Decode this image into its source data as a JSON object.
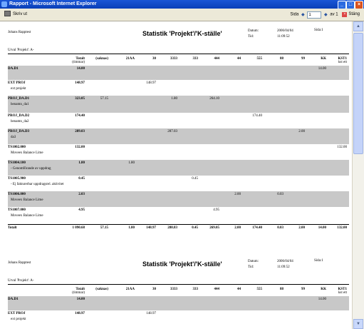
{
  "window": {
    "title": "Rapport - Microsoft Internet Explorer"
  },
  "toolbar": {
    "print_label": "Skriv ut",
    "page_label": "Sida",
    "page_value": "1",
    "page_of": "av 1",
    "close_label": "Stäng"
  },
  "report": {
    "author": "Johans Rapptest",
    "title": "Statistik 'Projekt'/'K-ställe'",
    "date_label": "Datum:",
    "date_value": "2006/04/04",
    "time_label": "Tid:",
    "time_value": "11:09:52",
    "page_info": "Sida:1",
    "selection": "Urval 'Projekt': A-",
    "columns": [
      {
        "label": "Totalt",
        "sub": "(timmar)"
      },
      {
        "label": "(saknas)",
        "sub": ""
      },
      {
        "label": "21AA",
        "sub": ""
      },
      {
        "label": "30",
        "sub": ""
      },
      {
        "label": "3333",
        "sub": ""
      },
      {
        "label": "333",
        "sub": ""
      },
      {
        "label": "444",
        "sub": ""
      },
      {
        "label": "44",
        "sub": ""
      },
      {
        "label": "555",
        "sub": ""
      },
      {
        "label": "88",
        "sub": ""
      },
      {
        "label": "99",
        "sub": ""
      },
      {
        "label": "KK",
        "sub": ""
      },
      {
        "label": "KST1",
        "sub": "kst ett"
      }
    ],
    "rows": [
      {
        "label": "DA.D1",
        "sub": "",
        "shaded": true,
        "values": [
          "14.00",
          "",
          "",
          "",
          "",
          "",
          "",
          "",
          "",
          "",
          "",
          "14.00",
          ""
        ]
      },
      {
        "label": "EXT PROJ",
        "sub": "ext projekt",
        "shaded": false,
        "values": [
          "148.97",
          "",
          "",
          "148.97",
          "",
          "",
          "",
          "",
          "",
          "",
          "",
          "",
          ""
        ]
      },
      {
        "label": "PROJ_DA.D1",
        "sub": "benamn_da1",
        "shaded": true,
        "values": [
          "323.05",
          "57.15",
          "",
          "",
          "1.80",
          "",
          "264.10",
          "",
          "",
          "",
          "",
          "",
          ""
        ]
      },
      {
        "label": "PROJ_DA.D2",
        "sub": "benamn_da2",
        "shaded": false,
        "values": [
          "174.40",
          "",
          "",
          "",
          "",
          "",
          "",
          "",
          "174.40",
          "",
          "",
          "",
          ""
        ]
      },
      {
        "label": "PROJ_DA.D3",
        "sub": "da3",
        "shaded": true,
        "values": [
          "289.03",
          "",
          "",
          "",
          "287.03",
          "",
          "",
          "",
          "",
          "",
          "2.00",
          "",
          ""
        ]
      },
      {
        "label": "TS1002.000",
        "sub": "Moveex Balance Lime",
        "shaded": false,
        "values": [
          "132.00",
          "",
          "",
          "",
          "",
          "",
          "",
          "",
          "",
          "",
          "",
          "",
          "132.00"
        ]
      },
      {
        "label": "TS1004.100",
        "sub": "- Genomförande av uppdrag",
        "shaded": true,
        "values": [
          "1.80",
          "",
          "1.80",
          "",
          "",
          "",
          "",
          "",
          "",
          "",
          "",
          "",
          ""
        ]
      },
      {
        "label": "TS1005.900",
        "sub": "- Ej fakturerbar uppdragsrel. aktivitet",
        "shaded": false,
        "values": [
          "0.45",
          "",
          "",
          "",
          "",
          "0.45",
          "",
          "",
          "",
          "",
          "",
          "",
          ""
        ]
      },
      {
        "label": "TS1006.000",
        "sub": "Moveex Balance Lime",
        "shaded": true,
        "values": [
          "2.03",
          "",
          "",
          "",
          "",
          "",
          "",
          "2.00",
          "",
          "0.03",
          "",
          "",
          ""
        ]
      },
      {
        "label": "TS1007.000",
        "sub": "Moveex Balance Lime",
        "shaded": false,
        "values": [
          "4.95",
          "",
          "",
          "",
          "",
          "",
          "4.95",
          "",
          "",
          "",
          "",
          "",
          ""
        ]
      }
    ],
    "total": {
      "label": "Totalt",
      "values": [
        "1 090.68",
        "57.15",
        "1.80",
        "148.97",
        "288.83",
        "0.45",
        "269.05",
        "2.00",
        "174.40",
        "0.03",
        "2.00",
        "14.00",
        "132.00"
      ]
    },
    "page2_rows": [
      {
        "label": "DA.D1",
        "sub": "",
        "shaded": true,
        "values": [
          "14.00",
          "",
          "",
          "",
          "",
          "",
          "",
          "",
          "",
          "",
          "",
          "14.00",
          ""
        ]
      },
      {
        "label": "EXT PROJ",
        "sub": "ext projekt",
        "shaded": false,
        "values": [
          "148.97",
          "",
          "",
          "148.97",
          "",
          "",
          "",
          "",
          "",
          "",
          "",
          "",
          ""
        ]
      }
    ]
  }
}
